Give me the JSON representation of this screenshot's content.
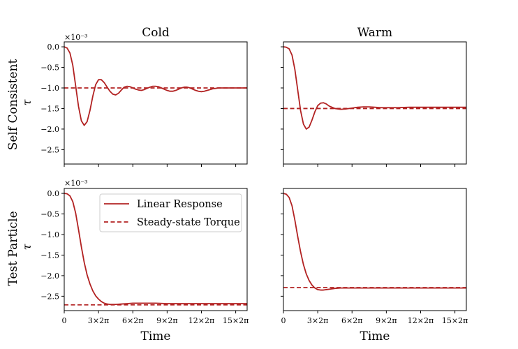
{
  "figure": {
    "column_titles": [
      "Cold",
      "Warm"
    ],
    "row_labels": [
      "Self Consistent",
      "Test Particle"
    ],
    "y_symbol": "τ",
    "x_label": "Time",
    "exponent_label": "×10⁻³",
    "colors": {
      "linear_response": "#b22222",
      "steady_state": "#b22222",
      "axes": "#000000"
    }
  },
  "chart_data": [
    {
      "type": "line",
      "panel": "Self Consistent / Cold",
      "xlim": [
        0,
        16
      ],
      "ylim": [
        -2.85,
        0.12
      ],
      "x_ticks": [
        0,
        3,
        6,
        9,
        12,
        15
      ],
      "y_ticks": [
        0.0,
        -0.5,
        -1.0,
        -1.5,
        -2.0,
        -2.5
      ],
      "series": [
        {
          "style": "solid",
          "x": [
            0,
            0.25,
            0.5,
            0.75,
            1,
            1.25,
            1.5,
            1.75,
            2,
            2.25,
            2.5,
            2.75,
            3,
            3.25,
            3.5,
            3.75,
            4,
            4.25,
            4.5,
            4.75,
            5,
            5.25,
            5.5,
            5.75,
            6,
            6.25,
            6.5,
            6.75,
            7,
            7.25,
            7.5,
            7.75,
            8,
            8.25,
            8.5,
            8.75,
            9,
            9.25,
            9.5,
            9.75,
            10,
            10.25,
            10.5,
            10.75,
            11,
            11.25,
            11.5,
            11.75,
            12,
            12.25,
            12.5,
            12.75,
            13,
            13.25,
            13.5,
            13.75,
            14,
            14.25,
            14.5,
            14.75,
            15,
            15.25,
            15.5,
            15.75,
            16
          ],
          "y": [
            0.0,
            -0.03,
            -0.15,
            -0.45,
            -0.95,
            -1.45,
            -1.8,
            -1.91,
            -1.82,
            -1.55,
            -1.2,
            -0.92,
            -0.8,
            -0.8,
            -0.87,
            -0.98,
            -1.08,
            -1.15,
            -1.17,
            -1.13,
            -1.05,
            -0.98,
            -0.96,
            -0.97,
            -1.0,
            -1.03,
            -1.05,
            -1.06,
            -1.04,
            -1.01,
            -0.98,
            -0.96,
            -0.96,
            -0.97,
            -1.0,
            -1.03,
            -1.06,
            -1.08,
            -1.08,
            -1.06,
            -1.03,
            -1.0,
            -0.98,
            -0.98,
            -1.0,
            -1.03,
            -1.06,
            -1.08,
            -1.09,
            -1.08,
            -1.06,
            -1.04,
            -1.02,
            -1.01,
            -1.0,
            -1.0,
            -1.0,
            -1.0,
            -1.0,
            -1.0,
            -1.0,
            -1.0,
            -1.0,
            -1.0,
            -1.0
          ]
        },
        {
          "style": "dashed",
          "x": [
            0,
            16
          ],
          "y": [
            -1.0,
            -1.0
          ]
        }
      ]
    },
    {
      "type": "line",
      "panel": "Self Consistent / Warm",
      "xlim": [
        0,
        16
      ],
      "ylim": [
        -2.85,
        0.12
      ],
      "x_ticks": [
        0,
        3,
        6,
        9,
        12,
        15
      ],
      "y_ticks": [
        0.0,
        -0.5,
        -1.0,
        -1.5,
        -2.0,
        -2.5
      ],
      "series": [
        {
          "style": "solid",
          "x": [
            0,
            0.25,
            0.5,
            0.75,
            1,
            1.25,
            1.5,
            1.75,
            2,
            2.25,
            2.5,
            2.75,
            3,
            3.25,
            3.5,
            3.75,
            4,
            4.5,
            5,
            5.5,
            6,
            6.5,
            7,
            7.5,
            8,
            8.5,
            9,
            10,
            11,
            12,
            13,
            14,
            15,
            16
          ],
          "y": [
            0.0,
            -0.01,
            -0.05,
            -0.2,
            -0.55,
            -1.05,
            -1.55,
            -1.88,
            -2.0,
            -1.95,
            -1.78,
            -1.58,
            -1.43,
            -1.37,
            -1.36,
            -1.39,
            -1.44,
            -1.5,
            -1.52,
            -1.51,
            -1.49,
            -1.47,
            -1.46,
            -1.46,
            -1.47,
            -1.48,
            -1.48,
            -1.48,
            -1.47,
            -1.47,
            -1.47,
            -1.47,
            -1.47,
            -1.47
          ]
        },
        {
          "style": "dashed",
          "x": [
            0,
            16
          ],
          "y": [
            -1.5,
            -1.5
          ]
        }
      ]
    },
    {
      "type": "line",
      "panel": "Test Particle / Cold",
      "xlim": [
        0,
        16
      ],
      "ylim": [
        -2.85,
        0.12
      ],
      "x_ticks": [
        0,
        3,
        6,
        9,
        12,
        15
      ],
      "x_tick_labels": [
        "0",
        "3×2π",
        "6×2π",
        "9×2π",
        "12×2π",
        "15×2π"
      ],
      "y_ticks": [
        0.0,
        -0.5,
        -1.0,
        -1.5,
        -2.0,
        -2.5
      ],
      "legend": {
        "placement": "upper right",
        "entries": [
          "Linear Response",
          "Steady-state Torque"
        ]
      },
      "series": [
        {
          "name": "Linear Response",
          "style": "solid",
          "x": [
            0,
            0.25,
            0.5,
            0.75,
            1,
            1.25,
            1.5,
            1.75,
            2,
            2.25,
            2.5,
            2.75,
            3,
            3.25,
            3.5,
            3.75,
            4,
            4.5,
            5,
            5.5,
            6,
            6.5,
            7,
            8,
            9,
            10,
            11,
            12,
            13,
            14,
            15,
            16
          ],
          "y": [
            0.0,
            -0.01,
            -0.06,
            -0.2,
            -0.48,
            -0.88,
            -1.3,
            -1.68,
            -1.98,
            -2.2,
            -2.37,
            -2.49,
            -2.57,
            -2.63,
            -2.67,
            -2.69,
            -2.7,
            -2.7,
            -2.69,
            -2.68,
            -2.67,
            -2.67,
            -2.67,
            -2.67,
            -2.68,
            -2.68,
            -2.68,
            -2.68,
            -2.68,
            -2.68,
            -2.68,
            -2.68
          ]
        },
        {
          "name": "Steady-state Torque",
          "style": "dashed",
          "x": [
            0,
            16
          ],
          "y": [
            -2.71,
            -2.71
          ]
        }
      ]
    },
    {
      "type": "line",
      "panel": "Test Particle / Warm",
      "xlim": [
        0,
        16
      ],
      "ylim": [
        -2.85,
        0.12
      ],
      "x_ticks": [
        0,
        3,
        6,
        9,
        12,
        15
      ],
      "x_tick_labels": [
        "0",
        "3×2π",
        "6×2π",
        "9×2π",
        "12×2π",
        "15×2π"
      ],
      "y_ticks": [
        0.0,
        -0.5,
        -1.0,
        -1.5,
        -2.0,
        -2.5
      ],
      "series": [
        {
          "style": "solid",
          "x": [
            0,
            0.25,
            0.5,
            0.75,
            1,
            1.25,
            1.5,
            1.75,
            2,
            2.25,
            2.5,
            2.75,
            3,
            3.25,
            3.5,
            3.75,
            4,
            4.5,
            5,
            5.5,
            6,
            7,
            8,
            9,
            10,
            11,
            12,
            13,
            14,
            15,
            16
          ],
          "y": [
            0.0,
            -0.02,
            -0.1,
            -0.3,
            -0.65,
            -1.05,
            -1.42,
            -1.73,
            -1.96,
            -2.12,
            -2.23,
            -2.3,
            -2.34,
            -2.35,
            -2.35,
            -2.34,
            -2.33,
            -2.31,
            -2.3,
            -2.3,
            -2.3,
            -2.3,
            -2.3,
            -2.3,
            -2.3,
            -2.3,
            -2.3,
            -2.3,
            -2.3,
            -2.3,
            -2.3
          ]
        },
        {
          "style": "dashed",
          "x": [
            0,
            16
          ],
          "y": [
            -2.29,
            -2.29
          ]
        }
      ]
    }
  ]
}
